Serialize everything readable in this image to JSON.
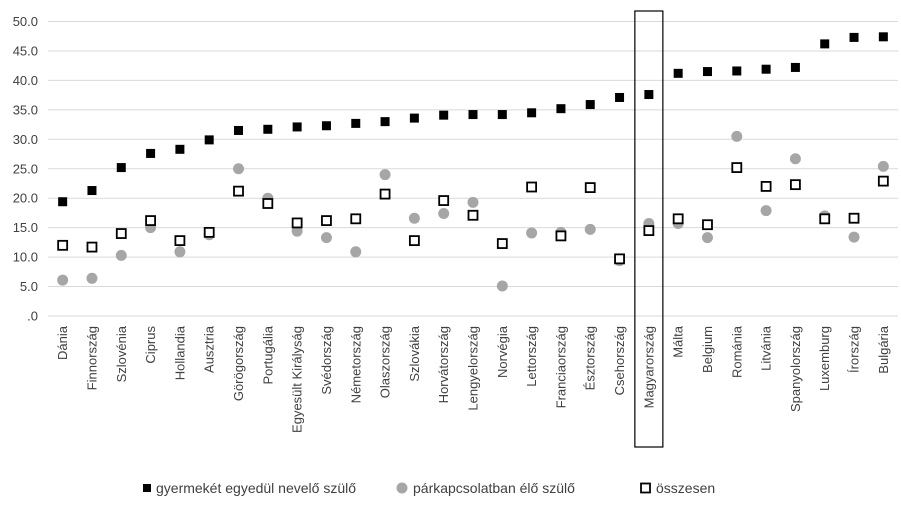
{
  "chart_data": {
    "type": "scatter",
    "title": "",
    "xlabel": "",
    "ylabel": "",
    "ylim": [
      0,
      50
    ],
    "yticks": [
      0,
      5,
      10,
      15,
      20,
      25,
      30,
      35,
      40,
      45,
      50
    ],
    "ytick_labels": [
      ".0",
      "5.0",
      "10.0",
      "15.0",
      "20.0",
      "25.0",
      "30.0",
      "35.0",
      "40.0",
      "45.0",
      "50.0"
    ],
    "grid": "horizontal",
    "legend_position": "bottom",
    "highlight_category": "Magyarország",
    "categories": [
      "Dánia",
      "Finnország",
      "Szlovénia",
      "Ciprus",
      "Hollandia",
      "Ausztria",
      "Görögország",
      "Portugália",
      "Egyesült Királyság",
      "Svédország",
      "Németország",
      "Olaszország",
      "Szlovákia",
      "Horvátország",
      "Lengyelország",
      "Norvégia",
      "Lettország",
      "Franciaország",
      "Észtország",
      "Csehország",
      "Magyarország",
      "Málta",
      "Belgium",
      "Románia",
      "Litvánia",
      "Spanyolország",
      "Luxemburg",
      "Írország",
      "Bulgária"
    ],
    "series": [
      {
        "name": "gyermekét egyedül nevelő szülő",
        "marker": "filled-square",
        "color": "#000000",
        "values": [
          19.4,
          21.3,
          25.2,
          27.6,
          28.3,
          29.9,
          31.5,
          31.7,
          32.1,
          32.3,
          32.7,
          33.0,
          33.6,
          34.1,
          34.2,
          34.2,
          34.5,
          35.2,
          35.9,
          37.1,
          37.6,
          41.2,
          41.5,
          41.6,
          41.9,
          42.2,
          46.2,
          47.3,
          47.4
        ]
      },
      {
        "name": "párkapcsolatban élő szülő",
        "marker": "filled-circle",
        "color": "#a6a6a6",
        "values": [
          6.1,
          6.4,
          10.3,
          15.0,
          10.9,
          13.8,
          25.0,
          20.0,
          14.4,
          13.3,
          10.9,
          24.0,
          16.6,
          17.4,
          19.3,
          5.1,
          14.1,
          14.2,
          14.7,
          9.4,
          15.7,
          15.7,
          13.3,
          30.5,
          17.9,
          26.7,
          17.0,
          13.4,
          25.4
        ]
      },
      {
        "name": "összesen",
        "marker": "hollow-square",
        "color": "#000000",
        "values": [
          12.0,
          11.7,
          14.0,
          16.2,
          12.8,
          14.2,
          21.2,
          19.1,
          15.8,
          16.2,
          16.5,
          20.7,
          12.8,
          19.6,
          17.1,
          12.3,
          21.9,
          13.6,
          21.8,
          9.7,
          14.5,
          16.5,
          15.5,
          25.2,
          22.0,
          22.3,
          16.5,
          16.6,
          22.9
        ]
      }
    ]
  }
}
